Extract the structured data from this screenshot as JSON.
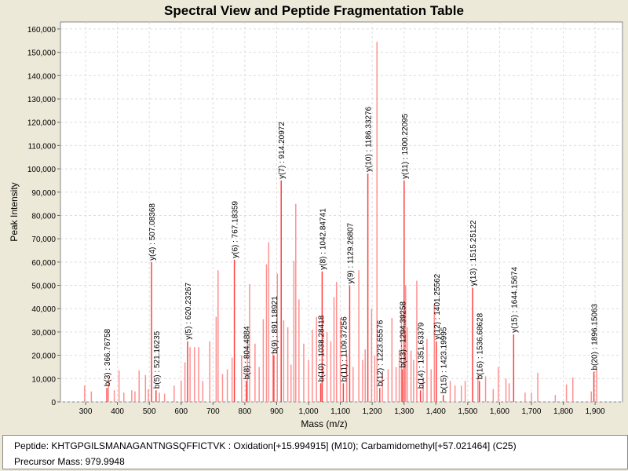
{
  "chart_data": {
    "type": "bar",
    "title": "Spectral View and Peptide Fragmentation Table",
    "xlabel": "Mass (m/z)",
    "ylabel": "Peak Intensity",
    "xlim": [
      221,
      1986
    ],
    "ylim": [
      0,
      163000
    ],
    "xticks": [
      300,
      400,
      500,
      600,
      700,
      800,
      900,
      1000,
      1100,
      1200,
      1300,
      1400,
      1500,
      1600,
      1700,
      1800,
      1900
    ],
    "xtick_labels": [
      "300",
      "400",
      "500",
      "600",
      "700",
      "800",
      "900",
      "1,000",
      "1,100",
      "1,200",
      "1,300",
      "1,400",
      "1,500",
      "1,600",
      "1,700",
      "1,800",
      "1,900"
    ],
    "yticks": [
      0,
      10000,
      20000,
      30000,
      40000,
      50000,
      60000,
      70000,
      80000,
      90000,
      100000,
      110000,
      120000,
      130000,
      140000,
      150000,
      160000
    ],
    "ytick_labels": [
      "0",
      "10,000",
      "20,000",
      "30,000",
      "40,000",
      "50,000",
      "60,000",
      "70,000",
      "80,000",
      "90,000",
      "100,000",
      "110,000",
      "120,000",
      "130,000",
      "140,000",
      "150,000",
      "160,000"
    ],
    "grid": true,
    "colors": {
      "annotated": "#ff4040",
      "peak": "#ff9090"
    },
    "annotated_peaks": [
      {
        "label": "b(3) : 366.76758",
        "mz": 366.77,
        "intensity": 6000
      },
      {
        "label": "y(4) : 507.08368",
        "mz": 507.08,
        "intensity": 60000
      },
      {
        "label": "b(5) : 521.16235",
        "mz": 521.16,
        "intensity": 5000
      },
      {
        "label": "y(5) : 620.23267",
        "mz": 620.23,
        "intensity": 26000
      },
      {
        "label": "y(6) : 767.18359",
        "mz": 767.18,
        "intensity": 61000
      },
      {
        "label": "b(8) : 804.4884",
        "mz": 804.49,
        "intensity": 9000
      },
      {
        "label": "b(9) : 891.18921",
        "mz": 891.19,
        "intensity": 20000
      },
      {
        "label": "y(7) : 914.20972",
        "mz": 914.21,
        "intensity": 95000
      },
      {
        "label": "b(10) : 1038.28418",
        "mz": 1038.28,
        "intensity": 8000
      },
      {
        "label": "y(8) : 1042.84741",
        "mz": 1042.85,
        "intensity": 56000
      },
      {
        "label": "b(11) : 1109.37256",
        "mz": 1109.37,
        "intensity": 8000
      },
      {
        "label": "y(9) : 1129.26807",
        "mz": 1129.27,
        "intensity": 50000
      },
      {
        "label": "y(10) : 1186.33276",
        "mz": 1186.33,
        "intensity": 98000
      },
      {
        "label": "b(12) : 1223.65576",
        "mz": 1223.66,
        "intensity": 6000
      },
      {
        "label": "b(13) : 1294.39258",
        "mz": 1294.39,
        "intensity": 14000
      },
      {
        "label": "y(11) : 1300.22095",
        "mz": 1300.22,
        "intensity": 95000
      },
      {
        "label": "b(14) : 1351.63379",
        "mz": 1351.63,
        "intensity": 5000
      },
      {
        "label": "y(12) : 1401.25562",
        "mz": 1401.26,
        "intensity": 26000
      },
      {
        "label": "b(15) : 1423.19995",
        "mz": 1423.2,
        "intensity": 3000
      },
      {
        "label": "y(13) : 1515.25122",
        "mz": 1515.25,
        "intensity": 49000
      },
      {
        "label": "b(16) : 1536.68628",
        "mz": 1536.69,
        "intensity": 9000
      },
      {
        "label": "y(15) : 1644.15674",
        "mz": 1644.16,
        "intensity": 29000
      },
      {
        "label": "b(20) : 1896.15063",
        "mz": 1896.15,
        "intensity": 13000
      }
    ],
    "peaks": [
      [
        297,
        7000
      ],
      [
        318,
        4500
      ],
      [
        372,
        10500
      ],
      [
        390,
        5000
      ],
      [
        405,
        13500
      ],
      [
        420,
        4000
      ],
      [
        445,
        5000
      ],
      [
        455,
        4500
      ],
      [
        468,
        13500
      ],
      [
        488,
        11500
      ],
      [
        497,
        5500
      ],
      [
        532,
        4000
      ],
      [
        548,
        3500
      ],
      [
        578,
        7000
      ],
      [
        600,
        9000
      ],
      [
        612,
        17000
      ],
      [
        628,
        23500
      ],
      [
        642,
        23500
      ],
      [
        655,
        23500
      ],
      [
        668,
        9000
      ],
      [
        690,
        26000
      ],
      [
        710,
        36500
      ],
      [
        716,
        56500
      ],
      [
        730,
        12000
      ],
      [
        745,
        14000
      ],
      [
        760,
        19000
      ],
      [
        790,
        20000
      ],
      [
        808,
        27000
      ],
      [
        815,
        50500
      ],
      [
        832,
        25000
      ],
      [
        845,
        15000
      ],
      [
        858,
        35500
      ],
      [
        868,
        59000
      ],
      [
        875,
        68500
      ],
      [
        888,
        21000
      ],
      [
        902,
        55000
      ],
      [
        922,
        35000
      ],
      [
        935,
        32000
      ],
      [
        945,
        16000
      ],
      [
        954,
        60500
      ],
      [
        960,
        85000
      ],
      [
        970,
        44000
      ],
      [
        985,
        25000
      ],
      [
        1000,
        18000
      ],
      [
        1012,
        31000
      ],
      [
        1025,
        36500
      ],
      [
        1058,
        30000
      ],
      [
        1070,
        26000
      ],
      [
        1080,
        45000
      ],
      [
        1088,
        51500
      ],
      [
        1100,
        36000
      ],
      [
        1120,
        20000
      ],
      [
        1140,
        15000
      ],
      [
        1158,
        56500
      ],
      [
        1170,
        18000
      ],
      [
        1178,
        22500
      ],
      [
        1198,
        40000
      ],
      [
        1208,
        20000
      ],
      [
        1215,
        154500
      ],
      [
        1232,
        12000
      ],
      [
        1250,
        14000
      ],
      [
        1262,
        36000
      ],
      [
        1275,
        15000
      ],
      [
        1285,
        22500
      ],
      [
        1292,
        38500
      ],
      [
        1305,
        50000
      ],
      [
        1310,
        32000
      ],
      [
        1322,
        22000
      ],
      [
        1330,
        18000
      ],
      [
        1340,
        52000
      ],
      [
        1360,
        10000
      ],
      [
        1372,
        27000
      ],
      [
        1385,
        14000
      ],
      [
        1395,
        42000
      ],
      [
        1445,
        9000
      ],
      [
        1460,
        7000
      ],
      [
        1480,
        7000
      ],
      [
        1492,
        9000
      ],
      [
        1532,
        12000
      ],
      [
        1556,
        11000
      ],
      [
        1580,
        5500
      ],
      [
        1596,
        15000
      ],
      [
        1620,
        10000
      ],
      [
        1630,
        8000
      ],
      [
        1680,
        4000
      ],
      [
        1700,
        4000
      ],
      [
        1720,
        12500
      ],
      [
        1775,
        3000
      ],
      [
        1810,
        7500
      ],
      [
        1830,
        10500
      ],
      [
        1888,
        4500
      ],
      [
        1905,
        14000
      ]
    ]
  },
  "info": {
    "peptide": "Peptide: KHTGPGILSMANAGANTNGSQFFICTVK : Oxidation[+15.994915] (M10); Carbamidomethyl[+57.021464] (C25)",
    "precursor": "Precursor Mass: 979.9948"
  }
}
